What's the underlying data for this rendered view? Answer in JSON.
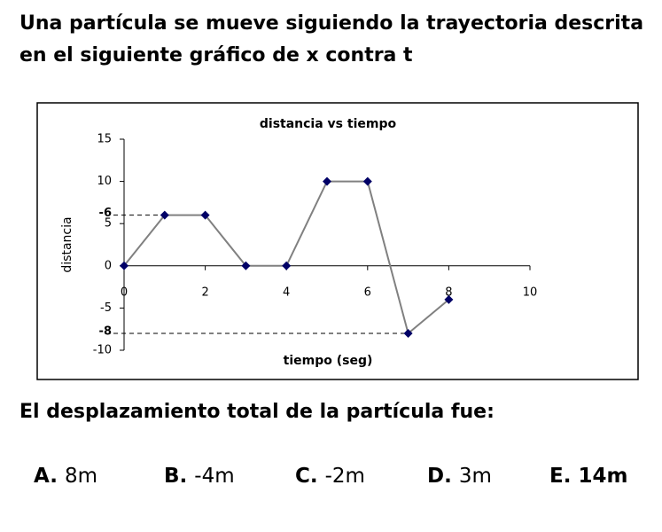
{
  "question": {
    "lines": [
      "Una partícula se mueve siguiendo la trayectoria descrita",
      "en el siguiente gráfico de x contra t"
    ]
  },
  "chart_data": {
    "type": "line",
    "title": "distancia  vs tiempo",
    "x_label": "tiempo (seg)",
    "y_label": "distancia",
    "x": [
      0,
      1,
      2,
      3,
      4,
      5,
      6,
      7,
      8
    ],
    "series": [
      {
        "color": "#000066",
        "values": [
          0,
          6,
          6,
          0,
          0,
          10,
          10,
          -8,
          -4
        ]
      }
    ],
    "xlim": [
      0,
      10
    ],
    "xticks": [
      0,
      2,
      4,
      6,
      8,
      10
    ],
    "ylim": [
      -10,
      15
    ],
    "yticks": [
      15,
      10,
      5,
      0,
      -5,
      -10
    ],
    "annotations": [
      "-6",
      "-8"
    ]
  },
  "prompt": "El desplazamiento total de la partícula fue:",
  "options": [
    {
      "letter": "A.",
      "text": "8m"
    },
    {
      "letter": "B.",
      "text": "-4m"
    },
    {
      "letter": "C.",
      "text": "-2m"
    },
    {
      "letter": "D.",
      "text": "3m"
    },
    {
      "letter": "E.",
      "text": "14m"
    }
  ]
}
